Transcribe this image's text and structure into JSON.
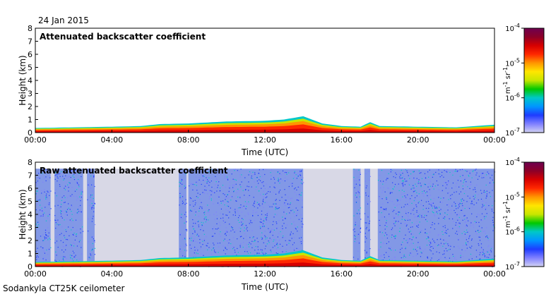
{
  "date": "24 Jan 2015",
  "footer": "Sodankyla CT25K ceilometer",
  "colors": {
    "no_data": "#d8d8e6",
    "colormap": [
      "#d2d2f2",
      "#8080ff",
      "#1e3cff",
      "#0096ff",
      "#00c8c8",
      "#00c800",
      "#c8e600",
      "#ffe600",
      "#ff9600",
      "#ff2800",
      "#d70000",
      "#8c0028",
      "#6e0050"
    ]
  },
  "colorbar": {
    "ticks": [
      {
        "base": "10",
        "exp": "-4"
      },
      {
        "base": "10",
        "exp": "-5"
      },
      {
        "base": "10",
        "exp": "-6"
      },
      {
        "base": "10",
        "exp": "-7"
      }
    ],
    "unit": {
      "m": "m",
      "m_exp": "-1",
      "sr": "sr",
      "sr_exp": "-1"
    }
  },
  "chart_data": [
    {
      "type": "heatmap",
      "title": "Attenuated backscatter coefficient",
      "xlabel": "Time (UTC)",
      "ylabel": "Height (km)",
      "x_ticks": [
        "00:00",
        "04:00",
        "08:00",
        "12:00",
        "16:00",
        "20:00",
        "00:00"
      ],
      "xlim_hours": [
        0,
        24
      ],
      "y_ticks": [
        "0",
        "1",
        "2",
        "3",
        "4",
        "5",
        "6",
        "7",
        "8"
      ],
      "ylim_km": [
        0,
        8
      ],
      "color_scale": "log",
      "clim": [
        1e-07,
        0.0001
      ],
      "background": "white",
      "boundary_layer_top_km": [
        [
          0.0,
          0.35
        ],
        [
          2.0,
          0.4
        ],
        [
          4.0,
          0.45
        ],
        [
          5.5,
          0.5
        ],
        [
          6.5,
          0.65
        ],
        [
          8.0,
          0.7
        ],
        [
          10.0,
          0.85
        ],
        [
          12.0,
          0.9
        ],
        [
          13.0,
          1.0
        ],
        [
          14.0,
          1.25
        ],
        [
          15.0,
          0.7
        ],
        [
          16.0,
          0.5
        ],
        [
          17.0,
          0.45
        ],
        [
          17.5,
          0.8
        ],
        [
          18.0,
          0.5
        ],
        [
          20.0,
          0.45
        ],
        [
          22.0,
          0.4
        ],
        [
          23.0,
          0.5
        ],
        [
          24.0,
          0.6
        ]
      ]
    },
    {
      "type": "heatmap",
      "title": "Raw attenuated backscatter coefficient",
      "xlabel": "Time (UTC)",
      "ylabel": "Height (km)",
      "x_ticks": [
        "00:00",
        "04:00",
        "08:00",
        "12:00",
        "16:00",
        "20:00",
        "00:00"
      ],
      "xlim_hours": [
        0,
        24
      ],
      "y_ticks": [
        "0",
        "1",
        "2",
        "3",
        "4",
        "5",
        "6",
        "7",
        "8"
      ],
      "ylim_km": [
        0,
        8
      ],
      "color_scale": "log",
      "clim": [
        1e-07,
        0.0001
      ],
      "noise_top_km": 7.5,
      "noisy_intervals_hours": [
        [
          0.0,
          0.8
        ],
        [
          1.0,
          2.5
        ],
        [
          2.7,
          3.1
        ],
        [
          7.5,
          7.9
        ],
        [
          8.0,
          12.0
        ],
        [
          12.0,
          14.0
        ],
        [
          16.6,
          17.0
        ],
        [
          17.2,
          17.5
        ],
        [
          17.9,
          24.0
        ]
      ],
      "boundary_layer_top_km": [
        [
          0.0,
          0.35
        ],
        [
          2.0,
          0.4
        ],
        [
          4.0,
          0.45
        ],
        [
          5.5,
          0.5
        ],
        [
          6.5,
          0.65
        ],
        [
          8.0,
          0.7
        ],
        [
          10.0,
          0.85
        ],
        [
          12.0,
          0.9
        ],
        [
          13.0,
          1.0
        ],
        [
          14.0,
          1.25
        ],
        [
          15.0,
          0.7
        ],
        [
          16.0,
          0.5
        ],
        [
          17.0,
          0.45
        ],
        [
          17.5,
          0.8
        ],
        [
          18.0,
          0.5
        ],
        [
          20.0,
          0.45
        ],
        [
          22.0,
          0.4
        ],
        [
          23.0,
          0.5
        ],
        [
          24.0,
          0.6
        ]
      ]
    }
  ]
}
